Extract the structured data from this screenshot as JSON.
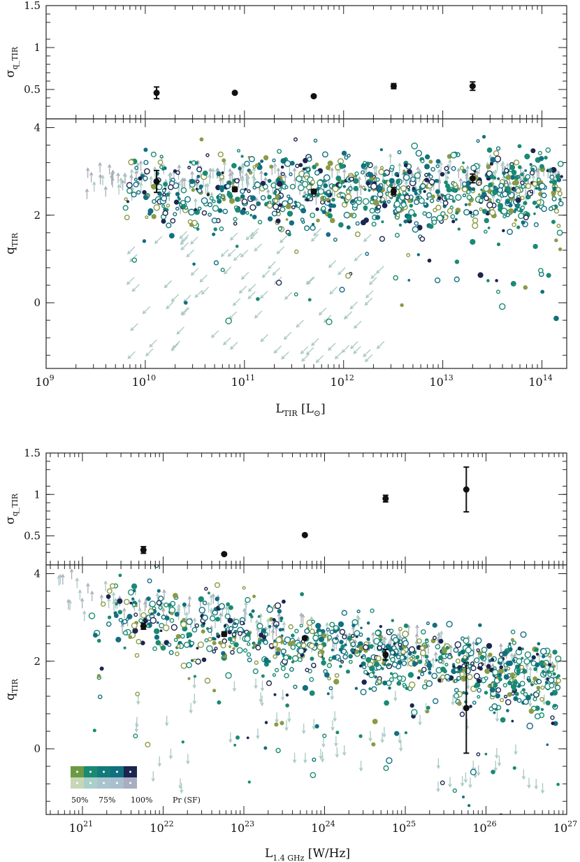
{
  "palette": {
    "dark": "#1c2550",
    "teal": "#126f80",
    "green": "#1a8a72",
    "olive": "#8a9a45",
    "arrow_light": "#a9c9c3",
    "arrow_grey": "#a8adb8",
    "points": "#111111"
  },
  "legend": {
    "labels": [
      "50%",
      "75%",
      "100%",
      "Pr (SF)"
    ],
    "swatches_top": [
      "#6c9a43",
      "#1a8a72",
      "#137a7a",
      "#126f80",
      "#1c2550"
    ],
    "swatches_bottom": [
      "#c6d7b5",
      "#a9cfc8",
      "#a9c4cc",
      "#a9bfd0",
      "#a8adc0"
    ]
  },
  "chart_data": [
    {
      "type": "scatter",
      "panel": "top-upper",
      "ylabel": "σ",
      "ylabel_sub": "q_TIR",
      "ylim": [
        0.15,
        1.5
      ],
      "yticks": [
        "0.5",
        "1",
        "1.5"
      ],
      "ytick_values": [
        0.5,
        1,
        1.5
      ],
      "xscale": "log",
      "xlim_exp": [
        9,
        14.25
      ],
      "points": [
        {
          "x": 13000000000.0,
          "y": 0.46,
          "err": 0.07
        },
        {
          "x": 80000000000.0,
          "y": 0.46,
          "err": 0.0
        },
        {
          "x": 500000000000.0,
          "y": 0.42,
          "err": 0.0
        },
        {
          "x": 3200000000000.0,
          "y": 0.54,
          "err": 0.03
        },
        {
          "x": 20000000000000.0,
          "y": 0.54,
          "err": 0.05
        }
      ]
    },
    {
      "type": "scatter",
      "panel": "top-main",
      "ylabel": "q",
      "ylabel_sub": "TIR",
      "xlabel": "L",
      "xlabel_sub": "TIR",
      "xlabel_unit": "[L",
      "xlabel_unit_sub": "⊙",
      "xlabel_unit_end": "]",
      "ylim": [
        -1.5,
        4.2
      ],
      "yticks": [
        "0",
        "2",
        "4"
      ],
      "ytick_values": [
        0,
        2,
        4
      ],
      "xscale": "log",
      "xlim_exp": [
        9,
        14.25
      ],
      "xticks": [
        {
          "base": "10",
          "exp": "9",
          "v": 9
        },
        {
          "base": "10",
          "exp": "10",
          "v": 10
        },
        {
          "base": "10",
          "exp": "11",
          "v": 11
        },
        {
          "base": "10",
          "exp": "12",
          "v": 12
        },
        {
          "base": "10",
          "exp": "13",
          "v": 13
        },
        {
          "base": "10",
          "exp": "14",
          "v": 14
        }
      ],
      "binned_means": [
        {
          "x": 13000000000.0,
          "y": 2.77,
          "err": 0.25
        },
        {
          "x": 80000000000.0,
          "y": 2.59,
          "err": 0.05
        },
        {
          "x": 500000000000.0,
          "y": 2.54,
          "err": 0.05
        },
        {
          "x": 3200000000000.0,
          "y": 2.55,
          "err": 0.08
        },
        {
          "x": 20000000000000.0,
          "y": 2.84,
          "err": 0.1
        }
      ],
      "cloud": {
        "x_exp_range": [
          9.4,
          14.2
        ],
        "y_center": 2.5,
        "y_spread": 0.45,
        "n_points": 950,
        "n_arrows_up": 230,
        "n_arrows_diag": 95
      }
    },
    {
      "type": "scatter",
      "panel": "bottom-upper",
      "ylabel": "σ",
      "ylabel_sub": "q_TIR",
      "ylim": [
        0.15,
        1.5
      ],
      "yticks": [
        "0.5",
        "1",
        "1.5"
      ],
      "ytick_values": [
        0.5,
        1,
        1.5
      ],
      "xscale": "log",
      "xlim_exp": [
        20.55,
        27
      ],
      "points": [
        {
          "x": 5.7e+21,
          "y": 0.33,
          "err": 0.04
        },
        {
          "x": 5.7e+22,
          "y": 0.28,
          "err": 0.0
        },
        {
          "x": 5.7e+23,
          "y": 0.51,
          "err": 0.0
        },
        {
          "x": 5.7e+24,
          "y": 0.95,
          "err": 0.04
        },
        {
          "x": 5.7e+25,
          "y": 1.06,
          "err": 0.27
        }
      ]
    },
    {
      "type": "scatter",
      "panel": "bottom-main",
      "ylabel": "q",
      "ylabel_sub": "TIR",
      "xlabel": "L",
      "xlabel_sub": "1.4 GHz",
      "xlabel_unit": "[W/Hz]",
      "ylim": [
        -1.5,
        4.2
      ],
      "yticks": [
        "0",
        "2",
        "4"
      ],
      "ytick_values": [
        0,
        2,
        4
      ],
      "xscale": "log",
      "xlim_exp": [
        20.55,
        27
      ],
      "xticks": [
        {
          "base": "10",
          "exp": "21",
          "v": 21
        },
        {
          "base": "10",
          "exp": "22",
          "v": 22
        },
        {
          "base": "10",
          "exp": "23",
          "v": 23
        },
        {
          "base": "10",
          "exp": "24",
          "v": 24
        },
        {
          "base": "10",
          "exp": "25",
          "v": 25
        },
        {
          "base": "10",
          "exp": "26",
          "v": 26
        },
        {
          "base": "10",
          "exp": "27",
          "v": 27
        }
      ],
      "binned_means": [
        {
          "x": 5.7e+21,
          "y": 2.8,
          "err": 0.07
        },
        {
          "x": 5.7e+22,
          "y": 2.62,
          "err": 0.05
        },
        {
          "x": 5.7e+23,
          "y": 2.53,
          "err": 0.03
        },
        {
          "x": 5.7e+24,
          "y": 2.15,
          "err": 0.12
        },
        {
          "x": 5.7e+25,
          "y": 0.93,
          "err": 1.03
        }
      ],
      "cloud": {
        "x_exp_range": [
          20.7,
          26.9
        ],
        "slope": -0.28,
        "y_center": 2.45,
        "y_spread": 0.42,
        "n_points": 950,
        "n_arrows_up": 190,
        "n_arrows_down": 70
      }
    }
  ]
}
